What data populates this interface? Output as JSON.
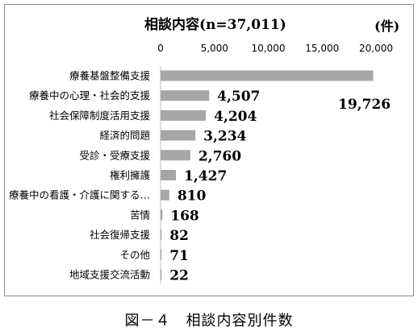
{
  "chart_data": {
    "type": "bar",
    "orientation": "horizontal",
    "title": "相談内容(n=37,011)",
    "unit_label": "(件)",
    "xlim": [
      0,
      20000
    ],
    "x_ticks": [
      "0",
      "5,000",
      "10,000",
      "15,000",
      "20,000"
    ],
    "x_tick_values": [
      0,
      5000,
      10000,
      15000,
      20000
    ],
    "grid": false,
    "bar_color": "#a6a6a6",
    "categories": [
      "療養基盤整備支援",
      "療養中の心理・社会的支援",
      "社会保障制度活用支援",
      "経済的問題",
      "受診・受療支援",
      "権利擁護",
      "療養中の看護・介護に関する…",
      "苦情",
      "社会復帰支援",
      "その他",
      "地域支援交流活動"
    ],
    "values": [
      19726,
      4507,
      4204,
      3234,
      2760,
      1427,
      810,
      168,
      82,
      71,
      22
    ],
    "data_labels": [
      "19,726",
      "4,507",
      "4,204",
      "3,234",
      "2,760",
      "1,427",
      "810",
      "168",
      "82",
      "71",
      "22"
    ]
  },
  "caption": "図－４　相談内容別件数"
}
